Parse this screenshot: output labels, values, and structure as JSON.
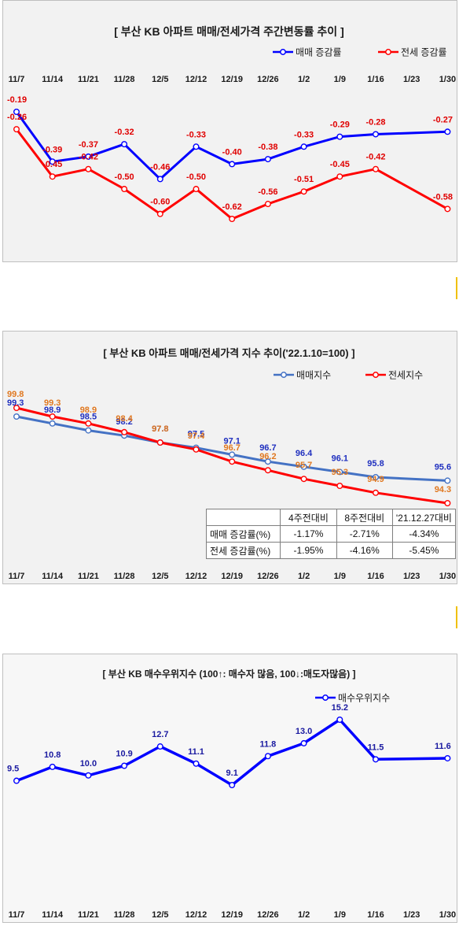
{
  "chart_data": [
    {
      "type": "line",
      "title": "[ 부산  KB 아파트 매매/전세가격 주간변동률 추이 ]",
      "categories": [
        "11/7",
        "11/14",
        "11/21",
        "11/28",
        "12/5",
        "12/12",
        "12/19",
        "12/26",
        "1/2",
        "1/9",
        "1/16",
        "1/23",
        "1/30"
      ],
      "legend_position": "top-right",
      "series": [
        {
          "name": "매매 증감률",
          "color": "#0000ff",
          "values": [
            -0.19,
            -0.39,
            -0.37,
            -0.32,
            -0.46,
            -0.33,
            -0.4,
            -0.38,
            -0.33,
            -0.29,
            -0.28,
            null,
            -0.27
          ]
        },
        {
          "name": "전세 증감률",
          "color": "#ff0000",
          "values": [
            -0.26,
            -0.45,
            -0.42,
            -0.5,
            -0.6,
            -0.5,
            -0.62,
            -0.56,
            -0.51,
            -0.45,
            -0.42,
            null,
            -0.58
          ]
        }
      ],
      "labels": {
        "sale": [
          "-0.19",
          "-0.39",
          "-0.37",
          "-0.32",
          "-0.46",
          "-0.33",
          "-0.40",
          "-0.38",
          "-0.33",
          "-0.29",
          "-0.28",
          "",
          "-0.27"
        ],
        "jeonse": [
          "-0.26",
          "-0.45",
          "-0.42",
          "-0.50",
          "-0.60",
          "-0.50",
          "-0.62",
          "-0.56",
          "-0.51",
          "-0.45",
          "-0.42",
          "",
          "-0.58"
        ]
      }
    },
    {
      "type": "line",
      "title": "[  부산  KB 아파트 매매/전세가격 지수 추이('22.1.10=100)  ]",
      "categories": [
        "11/7",
        "11/14",
        "11/21",
        "11/28",
        "12/5",
        "12/12",
        "12/19",
        "12/26",
        "1/2",
        "1/9",
        "1/16",
        "1/23",
        "1/30"
      ],
      "legend_position": "top-right",
      "series": [
        {
          "name": "매매지수",
          "color": "#4472c4",
          "label_color": "#1f2fbf",
          "values": [
            99.3,
            98.9,
            98.5,
            98.2,
            97.8,
            97.5,
            97.1,
            96.7,
            96.4,
            96.1,
            95.8,
            null,
            95.6
          ]
        },
        {
          "name": "전세지수",
          "color": "#ff0000",
          "label_color": "#e07820",
          "values": [
            99.8,
            99.3,
            98.9,
            98.4,
            97.8,
            97.4,
            96.7,
            96.2,
            95.7,
            95.3,
            94.9,
            null,
            94.3
          ]
        }
      ],
      "labels": {
        "sale": [
          "99.3",
          "98.9",
          "98.5",
          "98.2",
          "97.8",
          "97.5",
          "97.1",
          "96.7",
          "96.4",
          "96.1",
          "95.8",
          "",
          "95.6"
        ],
        "jeonse": [
          "99.8",
          "99.3",
          "98.9",
          "98.4",
          "97.8",
          "97.4",
          "96.7",
          "96.2",
          "95.7",
          "95.3",
          "94.9",
          "",
          "94.3"
        ]
      },
      "table": {
        "headers": [
          "",
          "4주전대비",
          "8주전대비",
          "'21.12.27대비"
        ],
        "rows": [
          [
            "매매 증감률(%)",
            "-1.17%",
            "-2.71%",
            "-4.34%"
          ],
          [
            "전세 증감률(%)",
            "-1.95%",
            "-4.16%",
            "-5.45%"
          ]
        ]
      }
    },
    {
      "type": "line",
      "title": "[ 부산  KB 매수우위지수 (100↑: 매수자 많음, 100↓:매도자많음) ]",
      "categories": [
        "11/7",
        "11/14",
        "11/21",
        "11/28",
        "12/5",
        "12/12",
        "12/19",
        "12/26",
        "1/2",
        "1/9",
        "1/16",
        "1/23",
        "1/30"
      ],
      "legend_position": "top-right",
      "series": [
        {
          "name": "매수우위지수",
          "color": "#0000ff",
          "values": [
            9.5,
            10.8,
            10.0,
            10.9,
            12.7,
            11.1,
            9.1,
            11.8,
            13.0,
            15.2,
            11.5,
            null,
            11.6
          ]
        }
      ],
      "labels": {
        "buy": [
          "9.5",
          "10.8",
          "10.0",
          "10.9",
          "12.7",
          "11.1",
          "9.1",
          "11.8",
          "13.0",
          "15.2",
          "11.5",
          "",
          "11.6"
        ]
      }
    }
  ]
}
